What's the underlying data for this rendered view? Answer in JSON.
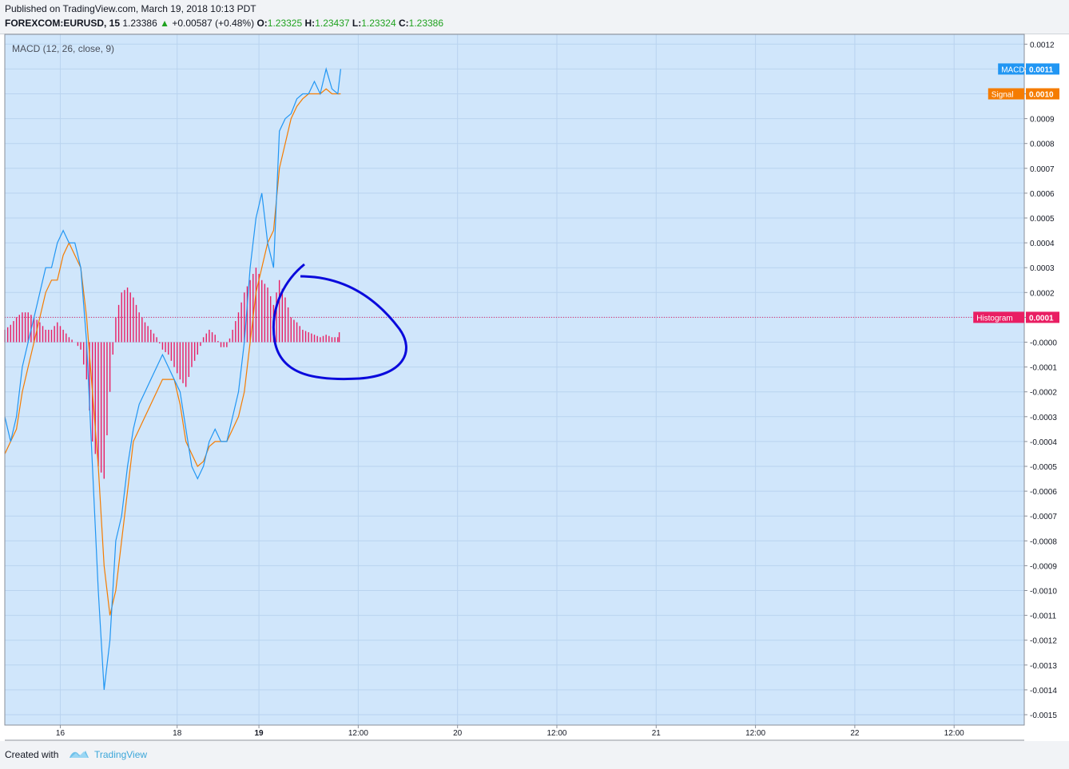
{
  "header": {
    "published": "Published on TradingView.com, March 19, 2018 10:13 PDT",
    "symbol": "FOREXCOM:EURUSD, 15",
    "price": "1.23386",
    "change": "+0.00587 (+0.48%)",
    "o_label": "O:",
    "o_value": "1.23325",
    "h_label": "H:",
    "h_value": "1.23437",
    "l_label": "L:",
    "l_value": "1.23324",
    "c_label": "C:",
    "c_value": "1.23386"
  },
  "indicator_title": "MACD (12, 26, close, 9)",
  "footer": {
    "created": "Created with",
    "brand": "TradingView"
  },
  "colors": {
    "macd": "#2196f3",
    "signal": "#f57c00",
    "histogram": "#e91e63",
    "annotation": "#0a0adc",
    "pane": "#d0e6fb"
  },
  "chart_data": {
    "type": "line",
    "ylim": [
      -0.00155,
      0.00122
    ],
    "yticks": [
      "0.0012",
      "0.0011",
      "0.0010",
      "0.0009",
      "0.0008",
      "0.0007",
      "0.0006",
      "0.0005",
      "0.0004",
      "0.0003",
      "0.0002",
      "0.0001",
      "-0.0000",
      "-0.0001",
      "-0.0002",
      "-0.0003",
      "-0.0004",
      "-0.0005",
      "-0.0006",
      "-0.0007",
      "-0.0008",
      "-0.0009",
      "-0.0010",
      "-0.0011",
      "-0.0012",
      "-0.0013",
      "-0.0014",
      "-0.0015"
    ],
    "ytick_values": [
      0.0012,
      0.0011,
      0.001,
      0.0009,
      0.0008,
      0.0007,
      0.0006,
      0.0005,
      0.0004,
      0.0003,
      0.0002,
      0.0001,
      0,
      -0.0001,
      -0.0002,
      -0.0003,
      -0.0004,
      -0.0005,
      -0.0006,
      -0.0007,
      -0.0008,
      -0.0009,
      -0.001,
      -0.0011,
      -0.0012,
      -0.0013,
      -0.0014,
      -0.0015
    ],
    "xlim": [
      0,
      360
    ],
    "xticks": [
      {
        "label": "16",
        "x": 19,
        "bold": false
      },
      {
        "label": "18",
        "x": 59,
        "bold": false
      },
      {
        "label": "19",
        "x": 87,
        "bold": true
      },
      {
        "label": "12:00",
        "x": 121,
        "bold": false
      },
      {
        "label": "20",
        "x": 155,
        "bold": false
      },
      {
        "label": "12:00",
        "x": 189,
        "bold": false
      },
      {
        "label": "21",
        "x": 223,
        "bold": false
      },
      {
        "label": "12:00",
        "x": 257,
        "bold": false
      },
      {
        "label": "22",
        "x": 291,
        "bold": false
      },
      {
        "label": "12:00",
        "x": 325,
        "bold": false
      }
    ],
    "series": [
      {
        "name": "MACD",
        "x": [
          0,
          2,
          4,
          6,
          8,
          10,
          12,
          14,
          16,
          18,
          20,
          22,
          24,
          26,
          28,
          30,
          32,
          34,
          36,
          38,
          40,
          42,
          44,
          46,
          48,
          50,
          52,
          54,
          56,
          58,
          60,
          62,
          64,
          66,
          68,
          70,
          72,
          74,
          76,
          78,
          80,
          82,
          84,
          86,
          88,
          90,
          92,
          94,
          96,
          98,
          100,
          102,
          104,
          106,
          108,
          110,
          112,
          114,
          115
        ],
        "values": [
          -0.0003,
          -0.0004,
          -0.0003,
          -0.0001,
          0,
          0.0001,
          0.0002,
          0.0003,
          0.0003,
          0.0004,
          0.00045,
          0.0004,
          0.0004,
          0.0003,
          0,
          -0.0005,
          -0.001,
          -0.0014,
          -0.0012,
          -0.0008,
          -0.0007,
          -0.0005,
          -0.00035,
          -0.00025,
          -0.0002,
          -0.00015,
          -0.0001,
          -5e-05,
          -0.0001,
          -0.00015,
          -0.0002,
          -0.00035,
          -0.0005,
          -0.00055,
          -0.0005,
          -0.0004,
          -0.00035,
          -0.0004,
          -0.0004,
          -0.0003,
          -0.0002,
          0,
          0.0003,
          0.0005,
          0.0006,
          0.0004,
          0.0003,
          0.00085,
          0.0009,
          0.00092,
          0.00098,
          0.001,
          0.001,
          0.00105,
          0.001,
          0.0011,
          0.00102,
          0.001,
          0.0011
        ]
      },
      {
        "name": "Signal",
        "x": [
          0,
          2,
          4,
          6,
          8,
          10,
          12,
          14,
          16,
          18,
          20,
          22,
          24,
          26,
          28,
          30,
          32,
          34,
          36,
          38,
          40,
          42,
          44,
          46,
          48,
          50,
          52,
          54,
          56,
          58,
          60,
          62,
          64,
          66,
          68,
          70,
          72,
          74,
          76,
          78,
          80,
          82,
          84,
          86,
          88,
          90,
          92,
          94,
          96,
          98,
          100,
          102,
          104,
          106,
          108,
          110,
          112,
          114,
          115
        ],
        "values": [
          -0.00045,
          -0.0004,
          -0.00035,
          -0.0002,
          -0.0001,
          0,
          0.0001,
          0.0002,
          0.00025,
          0.00025,
          0.00035,
          0.0004,
          0.00035,
          0.0003,
          0.0001,
          -0.0002,
          -0.0005,
          -0.0009,
          -0.0011,
          -0.001,
          -0.0008,
          -0.0006,
          -0.0004,
          -0.00035,
          -0.0003,
          -0.00025,
          -0.0002,
          -0.00015,
          -0.00015,
          -0.00015,
          -0.00025,
          -0.0004,
          -0.00045,
          -0.0005,
          -0.00048,
          -0.00042,
          -0.0004,
          -0.0004,
          -0.0004,
          -0.00035,
          -0.0003,
          -0.0002,
          0,
          0.0002,
          0.0003,
          0.0004,
          0.00045,
          0.0007,
          0.0008,
          0.0009,
          0.00095,
          0.00098,
          0.001,
          0.001,
          0.001,
          0.00102,
          0.001,
          0.001,
          0.001
        ]
      },
      {
        "name": "Histogram",
        "x": [
          0,
          2,
          4,
          6,
          8,
          10,
          12,
          14,
          16,
          18,
          20,
          22,
          24,
          26,
          28,
          30,
          32,
          34,
          36,
          38,
          40,
          42,
          44,
          46,
          48,
          50,
          52,
          54,
          56,
          58,
          60,
          62,
          64,
          66,
          68,
          70,
          72,
          74,
          76,
          78,
          80,
          82,
          84,
          86,
          88,
          90,
          92,
          94,
          96,
          98,
          100,
          102,
          104,
          106,
          108,
          110,
          112,
          114,
          115
        ],
        "values": [
          5e-05,
          7e-05,
          0.0001,
          0.00012,
          0.00012,
          0.0001,
          8e-05,
          5e-05,
          5e-05,
          8e-05,
          5e-05,
          2e-05,
          0,
          -3e-05,
          -0.00015,
          -0.0004,
          -0.0005,
          -0.00055,
          -0.0002,
          0.0001,
          0.0002,
          0.00022,
          0.00018,
          0.00012,
          8e-05,
          5e-05,
          2e-05,
          -3e-05,
          -5e-05,
          -0.0001,
          -0.00015,
          -0.00018,
          -0.0001,
          -5e-05,
          2e-05,
          5e-05,
          3e-05,
          -2e-05,
          -2e-05,
          5e-05,
          0.00012,
          0.0002,
          0.00025,
          0.0003,
          0.00025,
          0.00022,
          0.00015,
          0.00025,
          0.00018,
          0.0001,
          8e-05,
          5e-05,
          4e-05,
          3e-05,
          2e-05,
          3e-05,
          2e-05,
          2e-05,
          6e-05
        ]
      }
    ],
    "last_values": [
      {
        "name": "MACD",
        "label": "MACD",
        "value": "0.0011",
        "color": "#2196f3"
      },
      {
        "name": "Signal",
        "label": "Signal",
        "value": "0.0010",
        "color": "#f57c00"
      },
      {
        "name": "Histogram",
        "label": "Histogram",
        "value": "0.0001",
        "color": "#e91e63"
      }
    ],
    "grid": true
  }
}
